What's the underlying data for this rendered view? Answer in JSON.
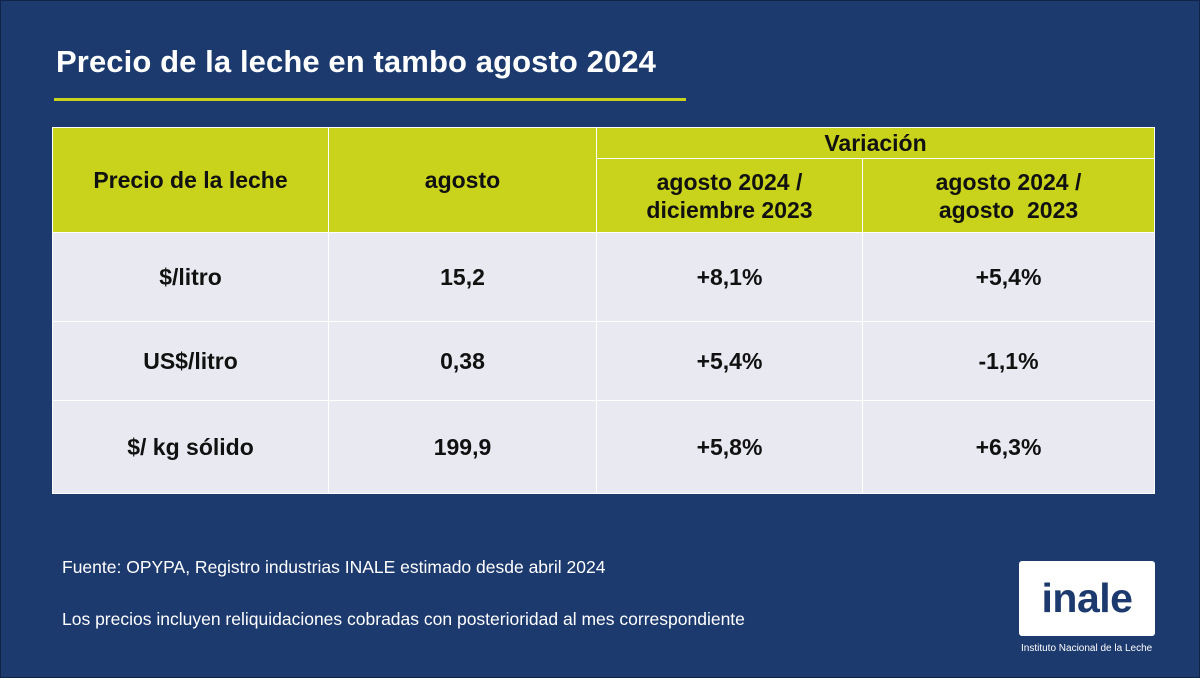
{
  "title": "Precio de la leche en tambo agosto 2024",
  "table": {
    "row_header": "Precio de la leche",
    "month_header": "agosto",
    "variation_header": "Variación",
    "variation_columns": [
      {
        "line1": "agosto 2024 /",
        "line2": "diciembre 2023"
      },
      {
        "line1": "agosto 2024 /",
        "line2": "agosto  2023"
      }
    ],
    "rows": [
      {
        "label": "$/litro",
        "value": "15,2",
        "var_dec": "+8,1%",
        "var_yoy": "+5,4%"
      },
      {
        "label": "US$/litro",
        "value": "0,38",
        "var_dec": "+5,4%",
        "var_yoy": "-1,1%"
      },
      {
        "label": "$/ kg sólido",
        "value": "199,9",
        "var_dec": "+5,8%",
        "var_yoy": "+6,3%"
      }
    ]
  },
  "footer": {
    "source": "Fuente: OPYPA, Registro industrias INALE estimado desde abril 2024",
    "note": "Los precios incluyen reliquidaciones cobradas con posterioridad al mes correspondiente"
  },
  "logo": {
    "word": "inale",
    "caption": "Instituto Nacional de la Leche"
  },
  "colors": {
    "background": "#1d3a6e",
    "accent": "#c9d31c",
    "cell": "#e9eaf1"
  }
}
